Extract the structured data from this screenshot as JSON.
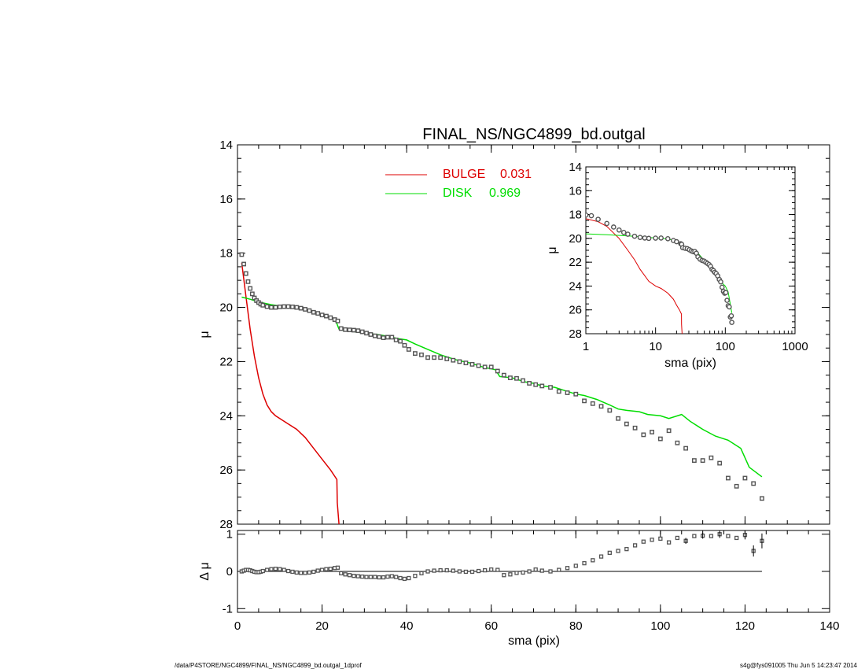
{
  "title": "FINAL_NS/NGC4899_bd.outgal",
  "footer": {
    "left": "/data/P4STORE/NGC4899/FINAL_NS/NGC4899_bd.outgal_1dprof",
    "right": "s4g@fys091005  Thu Jun  5 14:23:47 2014"
  },
  "colors": {
    "bulge": "#dd0000",
    "disk": "#00dd00",
    "data": "#555555",
    "axis": "#000000"
  },
  "chart_data": [
    {
      "type": "line",
      "panel": "main",
      "title": "FINAL_NS/NGC4899_bd.outgal",
      "xlabel": "",
      "ylabel": "μ",
      "xlim": [
        0,
        140
      ],
      "ylim": [
        28,
        14
      ],
      "xticks": [
        0,
        20,
        40,
        60,
        80,
        100,
        120,
        140
      ],
      "yticks": [
        14,
        16,
        18,
        20,
        22,
        24,
        26,
        28
      ],
      "legend": {
        "placement": "top",
        "entries": [
          {
            "label": "BULGE",
            "value": "0.031",
            "color": "#dd0000"
          },
          {
            "label": "DISK",
            "value": "0.969",
            "color": "#00dd00"
          }
        ]
      },
      "series": [
        {
          "name": "BULGE",
          "x": [
            1.0,
            2.0,
            3.0,
            4.0,
            5.0,
            6.0,
            7.0,
            8.0,
            9.0,
            10.0,
            12.0,
            14.0,
            16.0,
            18.0,
            20.0,
            22.0,
            23.5,
            23.6,
            24.0
          ],
          "y": [
            18.35,
            19.6,
            20.8,
            21.8,
            22.6,
            23.2,
            23.6,
            23.85,
            24.0,
            24.1,
            24.3,
            24.5,
            24.8,
            25.2,
            25.6,
            26.0,
            26.35,
            27.2,
            28.0
          ]
        },
        {
          "name": "DISK",
          "x": [
            1,
            3,
            5,
            8,
            10,
            12,
            15,
            18,
            20,
            23,
            23.5,
            24,
            25,
            28,
            30,
            33,
            35,
            38,
            40,
            42,
            45,
            48,
            50,
            52,
            55,
            58,
            61,
            62,
            65,
            68,
            70,
            72,
            75,
            78,
            80,
            82,
            85,
            88,
            90,
            92,
            95,
            97,
            100,
            102,
            105,
            107,
            110,
            113,
            116,
            119,
            121,
            124
          ],
          "y": [
            19.62,
            19.7,
            19.8,
            19.9,
            19.95,
            20.0,
            20.05,
            20.15,
            20.25,
            20.45,
            20.6,
            20.8,
            20.85,
            20.9,
            20.95,
            21.0,
            21.05,
            21.15,
            21.2,
            21.35,
            21.55,
            21.75,
            21.85,
            21.95,
            22.05,
            22.2,
            22.3,
            22.55,
            22.6,
            22.75,
            22.8,
            22.9,
            22.95,
            23.1,
            23.2,
            23.25,
            23.4,
            23.6,
            23.75,
            23.8,
            23.85,
            23.95,
            24.0,
            24.1,
            23.95,
            24.2,
            24.5,
            24.75,
            24.9,
            25.2,
            25.9,
            26.25
          ]
        },
        {
          "name": "data",
          "style": "points",
          "x": [
            1,
            1.5,
            2,
            2.5,
            3,
            3.5,
            4,
            4.5,
            5,
            5.5,
            6,
            7,
            8,
            9,
            10,
            11,
            12,
            13,
            14,
            15,
            16,
            17,
            18,
            19,
            20,
            21,
            22,
            23,
            23.7,
            24.5,
            25.5,
            26.5,
            27.5,
            28.5,
            29.5,
            30.5,
            31.5,
            32.5,
            33.5,
            34.5,
            35.5,
            36.5,
            37.5,
            38.5,
            39.5,
            40.5,
            42,
            43.5,
            45,
            46.5,
            48,
            49.5,
            51,
            52.5,
            54,
            55.5,
            57,
            58.5,
            60,
            61.5,
            63,
            64.5,
            66,
            67.5,
            69,
            70.5,
            72,
            74,
            76,
            78,
            80,
            82,
            84,
            86,
            88,
            90,
            92,
            94,
            96,
            98,
            100,
            102,
            104,
            106,
            108,
            110,
            112,
            114,
            116,
            118,
            120,
            122,
            124
          ],
          "y": [
            18.05,
            18.4,
            18.75,
            19.05,
            19.3,
            19.5,
            19.65,
            19.75,
            19.82,
            19.88,
            19.92,
            19.97,
            20.0,
            20.0,
            19.98,
            19.97,
            19.97,
            19.98,
            20.0,
            20.03,
            20.07,
            20.12,
            20.18,
            20.22,
            20.28,
            20.32,
            20.38,
            20.45,
            20.5,
            20.78,
            20.82,
            20.83,
            20.84,
            20.86,
            20.9,
            20.95,
            21.0,
            21.05,
            21.08,
            21.12,
            21.1,
            21.1,
            21.2,
            21.25,
            21.4,
            21.55,
            21.7,
            21.75,
            21.85,
            21.85,
            21.85,
            21.9,
            21.95,
            22.0,
            22.05,
            22.1,
            22.15,
            22.2,
            22.2,
            22.35,
            22.5,
            22.6,
            22.62,
            22.7,
            22.8,
            22.85,
            22.9,
            22.95,
            23.1,
            23.15,
            23.2,
            23.45,
            23.55,
            23.65,
            23.8,
            24.1,
            24.3,
            24.45,
            24.7,
            24.6,
            24.85,
            24.55,
            25.0,
            25.2,
            25.65,
            25.65,
            25.55,
            25.75,
            26.3,
            26.6,
            26.3,
            26.5,
            27.05
          ]
        }
      ]
    },
    {
      "type": "scatter",
      "panel": "inset",
      "xlabel": "sma (pix)",
      "ylabel": "μ",
      "xscale": "log",
      "xlim": [
        1,
        1000
      ],
      "ylim": [
        28,
        14
      ],
      "xticks": [
        1,
        10,
        100,
        1000
      ],
      "xticklabels": [
        "1",
        "10",
        "100",
        "1000"
      ],
      "yticks": [
        14,
        16,
        18,
        20,
        22,
        24,
        26,
        28
      ],
      "series": [
        {
          "name": "BULGE",
          "x": [
            1,
            1.5,
            2,
            3,
            4,
            5,
            6,
            8,
            10,
            12,
            15,
            18,
            20,
            22,
            23.5,
            23.6,
            24
          ],
          "y": [
            18.35,
            18.6,
            19.0,
            20.0,
            21.0,
            21.8,
            22.6,
            23.6,
            24.0,
            24.2,
            24.6,
            25.1,
            25.6,
            26.0,
            26.35,
            27.2,
            28.0
          ]
        },
        {
          "name": "DISK",
          "x": [
            1,
            2,
            4,
            6,
            10,
            15,
            20,
            24,
            30,
            40,
            50,
            60,
            70,
            80,
            90,
            100,
            110,
            124
          ],
          "y": [
            19.62,
            19.7,
            19.8,
            19.85,
            19.97,
            20.05,
            20.25,
            20.8,
            20.95,
            21.2,
            21.85,
            22.2,
            22.75,
            23.2,
            23.75,
            24.0,
            24.5,
            26.25
          ]
        },
        {
          "name": "data",
          "style": "points",
          "x": [
            1,
            1.2,
            1.5,
            2,
            2.5,
            3,
            3.5,
            4,
            5,
            6,
            7,
            8,
            10,
            12,
            15,
            18,
            20,
            23,
            23.7,
            24.5,
            26.5,
            28.5,
            30.5,
            32.5,
            34.5,
            36.5,
            38.5,
            40.5,
            43.5,
            46.5,
            49.5,
            52.5,
            55.5,
            58.5,
            61.5,
            64.5,
            67.5,
            70.5,
            74,
            78,
            82,
            86,
            90,
            94,
            98,
            102,
            106,
            110,
            114,
            118,
            122,
            124
          ],
          "y": [
            18.05,
            18.1,
            18.4,
            18.75,
            19.05,
            19.3,
            19.5,
            19.65,
            19.82,
            19.92,
            19.97,
            20.0,
            19.98,
            19.97,
            20.03,
            20.18,
            20.28,
            20.45,
            20.5,
            20.78,
            20.83,
            20.86,
            20.95,
            21.05,
            21.12,
            21.1,
            21.25,
            21.55,
            21.75,
            21.85,
            21.9,
            22.0,
            22.1,
            22.2,
            22.35,
            22.6,
            22.7,
            22.85,
            22.95,
            23.15,
            23.45,
            23.65,
            24.1,
            24.45,
            24.6,
            24.55,
            25.2,
            25.65,
            25.75,
            26.6,
            26.5,
            27.05
          ]
        }
      ]
    },
    {
      "type": "scatter",
      "panel": "residual",
      "xlabel": "sma (pix)",
      "ylabel": "Δ μ",
      "xlim": [
        0,
        140
      ],
      "ylim": [
        -1.1,
        1.1
      ],
      "xticks": [
        0,
        20,
        40,
        60,
        80,
        100,
        120,
        140
      ],
      "yticks": [
        -1,
        0,
        1
      ],
      "series": [
        {
          "name": "residual",
          "style": "points",
          "x": [
            1,
            1.5,
            2,
            2.5,
            3,
            3.5,
            4,
            4.5,
            5,
            5.5,
            6,
            7,
            8,
            9,
            10,
            11,
            12,
            13,
            14,
            15,
            16,
            17,
            18,
            19,
            20,
            21,
            22,
            23,
            23.7,
            24.5,
            25.5,
            26.5,
            27.5,
            28.5,
            29.5,
            30.5,
            31.5,
            32.5,
            33.5,
            34.5,
            35.5,
            36.5,
            37.5,
            38.5,
            39.5,
            40.5,
            42,
            43.5,
            45,
            46.5,
            48,
            49.5,
            51,
            52.5,
            54,
            55.5,
            57,
            58.5,
            60,
            61.5,
            63,
            64.5,
            66,
            67.5,
            69,
            70.5,
            72,
            74,
            76,
            78,
            80,
            82,
            84,
            86,
            88,
            90,
            92,
            94,
            96,
            98,
            100,
            102,
            104,
            106,
            108,
            110,
            112,
            114,
            116,
            118,
            120,
            122,
            124
          ],
          "y": [
            0.0,
            0.02,
            0.04,
            0.04,
            0.03,
            0.01,
            -0.01,
            -0.02,
            -0.02,
            -0.01,
            0.01,
            0.04,
            0.06,
            0.07,
            0.06,
            0.04,
            0.01,
            -0.01,
            -0.03,
            -0.04,
            -0.04,
            -0.03,
            -0.01,
            0.02,
            0.04,
            0.06,
            0.07,
            0.09,
            0.1,
            -0.05,
            -0.08,
            -0.1,
            -0.12,
            -0.13,
            -0.14,
            -0.15,
            -0.15,
            -0.15,
            -0.16,
            -0.16,
            -0.14,
            -0.13,
            -0.15,
            -0.18,
            -0.2,
            -0.18,
            -0.12,
            -0.05,
            0.0,
            0.02,
            0.03,
            0.03,
            0.02,
            0.0,
            -0.01,
            -0.01,
            0.01,
            0.03,
            0.05,
            0.04,
            -0.1,
            -0.08,
            -0.04,
            -0.03,
            0.0,
            0.05,
            0.02,
            0.0,
            0.04,
            0.09,
            0.15,
            0.22,
            0.3,
            0.4,
            0.5,
            0.55,
            0.6,
            0.7,
            0.8,
            0.85,
            0.88,
            0.78,
            0.9,
            0.82,
            0.95,
            0.96,
            0.95,
            1.0,
            0.95,
            0.9,
            0.98,
            0.55,
            0.82
          ],
          "errors": {
            "x": [
              106,
              110,
              114,
              120,
              122,
              124
            ],
            "err": [
              0.08,
              0.08,
              0.1,
              0.12,
              0.15,
              0.2
            ]
          }
        }
      ]
    }
  ]
}
